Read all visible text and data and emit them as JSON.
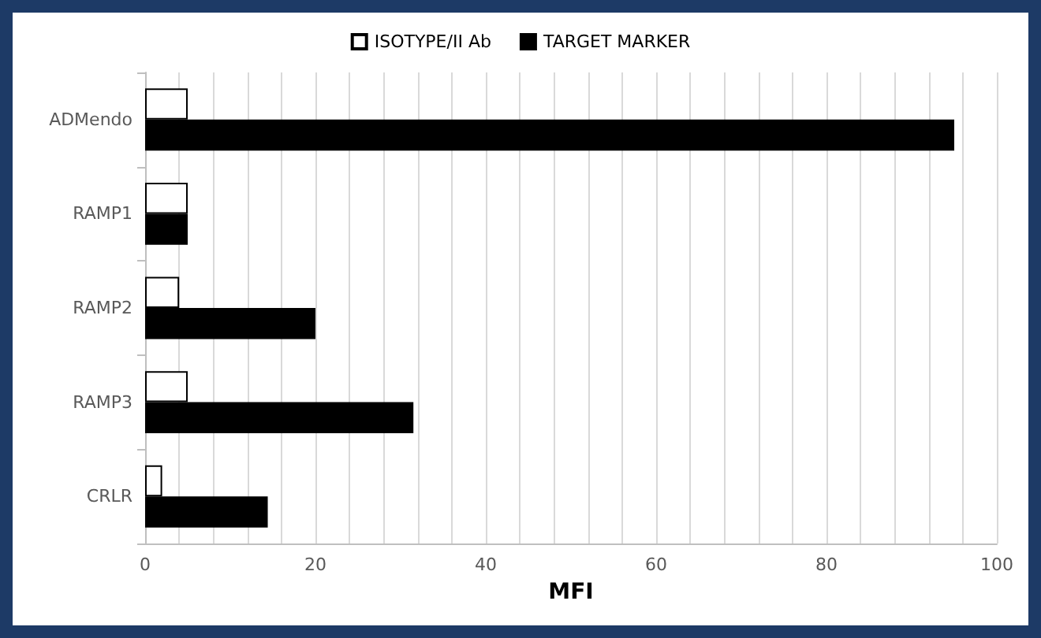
{
  "chart_data": {
    "type": "bar",
    "orientation": "horizontal",
    "xlabel": "MFI",
    "categories": [
      "ADMendo",
      "RAMP1",
      "RAMP2",
      "RAMP3",
      "CRLR"
    ],
    "series": [
      {
        "name": "ISOTYPE/II Ab",
        "color": "#ffffff",
        "values": [
          5,
          5,
          4,
          5,
          2
        ]
      },
      {
        "name": "TARGET MARKER",
        "color": "#000000",
        "values": [
          95,
          5,
          20,
          31.5,
          14.4
        ]
      }
    ],
    "xlim": [
      0,
      100
    ],
    "xticks": [
      0,
      {
        "value": 4,
        "label": null
      },
      {
        "value": 8,
        "label": null
      },
      {
        "value": 12,
        "label": null
      },
      {
        "value": 16,
        "label": null
      },
      20,
      {
        "value": 24,
        "label": null
      },
      {
        "value": 28,
        "label": null
      },
      {
        "value": 32,
        "label": null
      },
      {
        "value": 36,
        "label": null
      },
      40,
      {
        "value": 44,
        "label": null
      },
      {
        "value": 48,
        "label": null
      },
      {
        "value": 52,
        "label": null
      },
      {
        "value": 56,
        "label": null
      },
      60,
      {
        "value": 64,
        "label": null
      },
      {
        "value": 68,
        "label": null
      },
      {
        "value": 72,
        "label": null
      },
      {
        "value": 76,
        "label": null
      },
      80,
      {
        "value": 84,
        "label": null
      },
      {
        "value": 88,
        "label": null
      },
      {
        "value": 92,
        "label": null
      },
      {
        "value": 96,
        "label": null
      },
      100
    ],
    "grid": "x",
    "legend": "top"
  }
}
